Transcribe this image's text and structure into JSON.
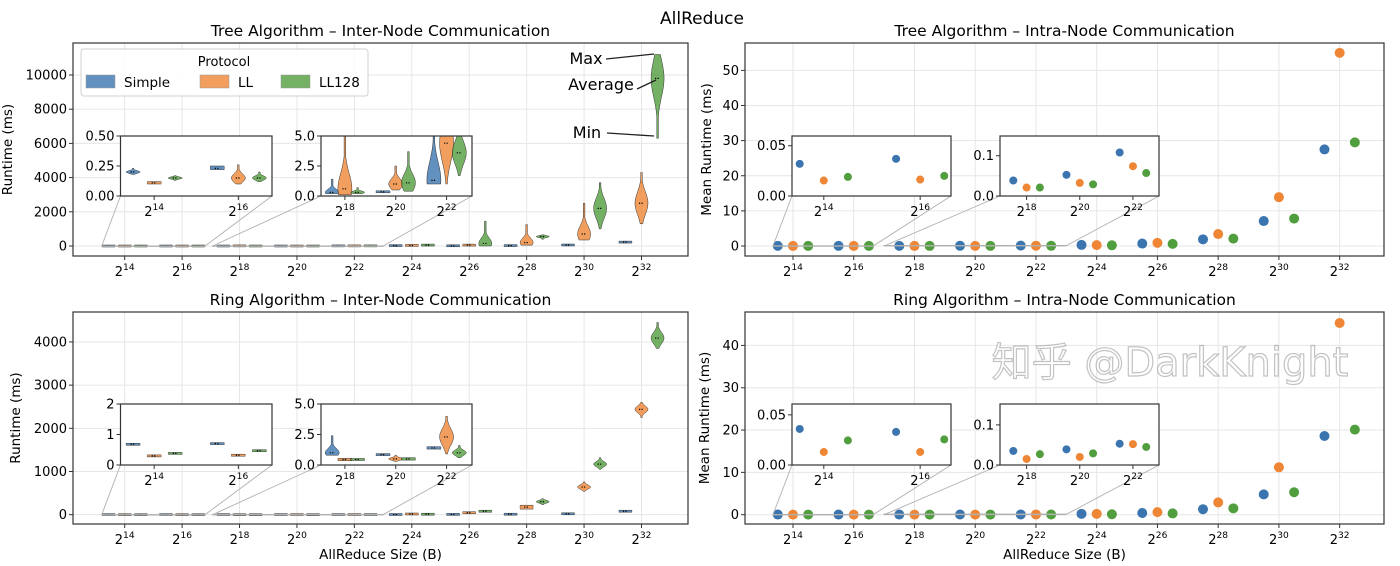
{
  "figure": {
    "title": "AllReduce",
    "watermark": "知乎 @DarkKnight"
  },
  "colors": {
    "Simple": "#3b75af",
    "LL": "#ef8636",
    "LL128": "#519e3e",
    "grid": "#e6e6e6"
  },
  "legend": {
    "title": "Protocol",
    "entries": [
      "Simple",
      "LL",
      "LL128"
    ],
    "placement": "upper-left"
  },
  "annotations": {
    "max": "Max",
    "average": "Average",
    "min": "Min"
  },
  "chart_data": [
    {
      "type": "violin",
      "title": "Tree Algorithm – Inter-Node Communication",
      "ylabel": "Runtime (ms)",
      "xlabel": "",
      "grid": true,
      "categories": [
        "2^14",
        "2^16",
        "2^18",
        "2^20",
        "2^22",
        "2^24",
        "2^26",
        "2^28",
        "2^30",
        "2^32"
      ],
      "ylim": [
        -585,
        11870
      ],
      "yticks": [
        "0",
        "2000",
        "4000",
        "6000",
        "8000",
        "10000"
      ],
      "series": [
        {
          "name": "Simple",
          "min": [
            0.18,
            0.22,
            0.2,
            0.3,
            1.0,
            15,
            5,
            10,
            40,
            200
          ],
          "mean": [
            0.2,
            0.23,
            0.3,
            0.35,
            1.3,
            20,
            10,
            20,
            60,
            230
          ],
          "max": [
            0.23,
            0.25,
            1.4,
            0.4,
            8,
            30,
            20,
            40,
            80,
            260
          ]
        },
        {
          "name": "LL",
          "min": [
            0.1,
            0.1,
            0.1,
            0.5,
            1.0,
            20,
            0,
            50,
            350,
            1300
          ],
          "mean": [
            0.11,
            0.15,
            0.6,
            1.0,
            4.4,
            30,
            50,
            200,
            700,
            2500
          ],
          "max": [
            0.12,
            0.26,
            6,
            2.5,
            8,
            45,
            100,
            1250,
            2500,
            4300
          ]
        },
        {
          "name": "LL128",
          "min": [
            0.13,
            0.12,
            0.2,
            0.4,
            1.7,
            30,
            0,
            400,
            1000,
            6300
          ],
          "mean": [
            0.15,
            0.15,
            0.3,
            1.1,
            3.6,
            50,
            150,
            550,
            2200,
            9800
          ],
          "max": [
            0.17,
            0.2,
            0.7,
            3.7,
            6,
            70,
            1450,
            650,
            3700,
            11200
          ]
        }
      ],
      "insets": [
        {
          "categories": [
            "2^14",
            "2^16"
          ],
          "ylim": [
            0,
            0.5
          ],
          "yticks": [
            "0.00",
            "0.25",
            "0.50"
          ]
        },
        {
          "categories": [
            "2^18",
            "2^20",
            "2^22"
          ],
          "ylim": [
            0,
            5
          ],
          "yticks": [
            "0.0",
            "2.5",
            "5.0"
          ]
        }
      ]
    },
    {
      "type": "scatter",
      "title": "Tree Algorithm – Intra-Node Communication",
      "ylabel": "Mean Runtime (ms)",
      "xlabel": "",
      "grid": true,
      "categories": [
        "2^14",
        "2^16",
        "2^18",
        "2^20",
        "2^22",
        "2^24",
        "2^26",
        "2^28",
        "2^30",
        "2^32"
      ],
      "ylim": [
        -2.85,
        57.8
      ],
      "yticks": [
        "0",
        "10",
        "20",
        "30",
        "40",
        "50"
      ],
      "series": [
        {
          "name": "Simple",
          "values": [
            0.032,
            0.037,
            0.0385,
            0.0525,
            0.108,
            0.3,
            0.7,
            1.9,
            7.1,
            27.5
          ]
        },
        {
          "name": "LL",
          "values": [
            0.0154,
            0.0164,
            0.021,
            0.0325,
            0.074,
            0.25,
            0.9,
            3.4,
            13.9,
            55
          ]
        },
        {
          "name": "LL128",
          "values": [
            0.019,
            0.02,
            0.021,
            0.029,
            0.057,
            0.2,
            0.6,
            2.1,
            7.8,
            29.5
          ]
        }
      ],
      "insets": [
        {
          "categories": [
            "2^14",
            "2^16"
          ],
          "ylim": [
            0,
            0.0597
          ],
          "yticks": [
            "0.00",
            "0.05"
          ],
          "ytick_values": [
            0,
            0.05
          ]
        },
        {
          "categories": [
            "2^18",
            "2^20",
            "2^22"
          ],
          "ylim": [
            0,
            0.149
          ],
          "yticks": [
            "0.0",
            "0.1"
          ],
          "ytick_values": [
            0,
            0.1
          ]
        }
      ]
    },
    {
      "type": "violin",
      "title": "Ring Algorithm – Inter-Node Communication",
      "ylabel": "Runtime (ms)",
      "xlabel": "AllReduce Size (B)",
      "grid": true,
      "categories": [
        "2^14",
        "2^16",
        "2^18",
        "2^20",
        "2^22",
        "2^24",
        "2^26",
        "2^28",
        "2^30",
        "2^32"
      ],
      "ylim": [
        -216,
        4694
      ],
      "yticks": [
        "0",
        "1000",
        "2000",
        "3000",
        "4000"
      ],
      "series": [
        {
          "name": "Simple",
          "min": [
            0.66,
            0.68,
            0.8,
            0.8,
            1.3,
            2,
            4,
            8,
            15,
            70
          ],
          "mean": [
            0.68,
            0.7,
            1.0,
            0.85,
            1.4,
            3,
            5,
            10,
            20,
            80
          ],
          "max": [
            0.7,
            0.72,
            2.4,
            0.9,
            1.5,
            4,
            7,
            14,
            25,
            90
          ]
        },
        {
          "name": "LL",
          "min": [
            0.29,
            0.31,
            0.35,
            0.3,
            0.9,
            10,
            20,
            130,
            540,
            2250
          ],
          "mean": [
            0.3,
            0.32,
            0.45,
            0.5,
            2.3,
            15,
            45,
            175,
            640,
            2440
          ],
          "max": [
            0.31,
            0.33,
            0.55,
            0.8,
            4.0,
            20,
            70,
            220,
            760,
            2600
          ]
        },
        {
          "name": "LL128",
          "min": [
            0.37,
            0.46,
            0.4,
            0.4,
            0.6,
            8,
            60,
            230,
            1050,
            3850
          ],
          "mean": [
            0.38,
            0.47,
            0.45,
            0.5,
            1.0,
            12,
            80,
            300,
            1170,
            4090
          ],
          "max": [
            0.39,
            0.48,
            0.5,
            0.6,
            1.6,
            16,
            100,
            370,
            1320,
            4450
          ]
        }
      ],
      "insets": [
        {
          "categories": [
            "2^14",
            "2^16"
          ],
          "ylim": [
            0,
            2
          ],
          "yticks": [
            "0",
            "1",
            "2"
          ]
        },
        {
          "categories": [
            "2^18",
            "2^20",
            "2^22"
          ],
          "ylim": [
            0,
            5
          ],
          "yticks": [
            "0.0",
            "2.5",
            "5.0"
          ]
        }
      ]
    },
    {
      "type": "scatter",
      "title": "Ring Algorithm – Intra-Node Communication",
      "ylabel": "Mean Runtime (ms)",
      "xlabel": "AllReduce Size (B)",
      "grid": true,
      "categories": [
        "2^14",
        "2^16",
        "2^18",
        "2^20",
        "2^22",
        "2^24",
        "2^26",
        "2^28",
        "2^30",
        "2^32"
      ],
      "ylim": [
        -2.2,
        47.9
      ],
      "yticks": [
        "0",
        "10",
        "20",
        "30",
        "40"
      ],
      "series": [
        {
          "name": "Simple",
          "values": [
            0.0359,
            0.033,
            0.035,
            0.039,
            0.053,
            0.2,
            0.4,
            1.3,
            4.8,
            18.6
          ]
        },
        {
          "name": "LL",
          "values": [
            0.013,
            0.013,
            0.015,
            0.02,
            0.052,
            0.2,
            0.6,
            2.9,
            11.2,
            45.3
          ]
        },
        {
          "name": "LL128",
          "values": [
            0.0245,
            0.0255,
            0.027,
            0.029,
            0.045,
            0.1,
            0.3,
            1.5,
            5.3,
            20.1
          ]
        }
      ],
      "insets": [
        {
          "categories": [
            "2^14",
            "2^16"
          ],
          "ylim": [
            0,
            0.0608
          ],
          "yticks": [
            "0.00",
            "0.05"
          ],
          "ytick_values": [
            0,
            0.05
          ]
        },
        {
          "categories": [
            "2^18",
            "2^20",
            "2^22"
          ],
          "ylim": [
            0,
            0.152
          ],
          "yticks": [
            "0.0",
            "0.1"
          ],
          "ytick_values": [
            0,
            0.1
          ]
        }
      ]
    }
  ]
}
